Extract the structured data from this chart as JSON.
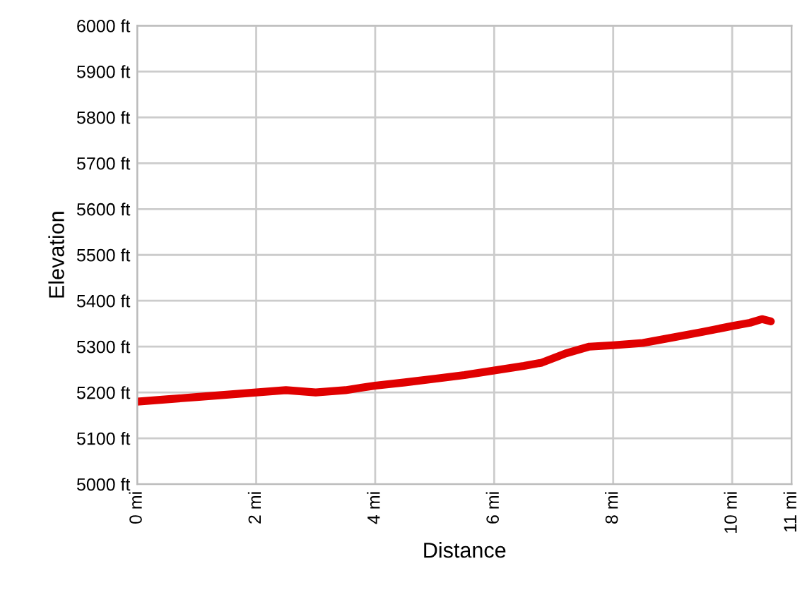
{
  "chart_data": {
    "type": "line",
    "xlabel": "Distance",
    "ylabel": "Elevation",
    "x": [
      0,
      0.5,
      1,
      1.5,
      2,
      2.5,
      3,
      3.5,
      4,
      4.5,
      5,
      5.5,
      6,
      6.5,
      6.8,
      7.2,
      7.6,
      8,
      8.5,
      9,
      9.5,
      10,
      10.3,
      10.5,
      10.65
    ],
    "series": [
      {
        "color": "#e00000",
        "values": [
          5180,
          5185,
          5190,
          5195,
          5200,
          5205,
          5200,
          5205,
          5215,
          5222,
          5230,
          5238,
          5248,
          5258,
          5265,
          5285,
          5300,
          5303,
          5308,
          5320,
          5332,
          5345,
          5352,
          5360,
          5355
        ]
      }
    ],
    "xlim": [
      0,
      11
    ],
    "xticks": [
      {
        "value": 0,
        "label": "0 mi"
      },
      {
        "value": 2,
        "label": "2 mi"
      },
      {
        "value": 4,
        "label": "4 mi"
      },
      {
        "value": 6,
        "label": "6 mi"
      },
      {
        "value": 8,
        "label": "8 mi"
      },
      {
        "value": 10,
        "label": "10 mi"
      },
      {
        "value": 11,
        "label": "11 mi"
      }
    ],
    "ylim": [
      5000,
      6000
    ],
    "yticks": [
      {
        "value": 5000,
        "label": "5000 ft"
      },
      {
        "value": 5100,
        "label": "5100 ft"
      },
      {
        "value": 5200,
        "label": "5200 ft"
      },
      {
        "value": 5300,
        "label": "5300 ft"
      },
      {
        "value": 5400,
        "label": "5400 ft"
      },
      {
        "value": 5500,
        "label": "5500 ft"
      },
      {
        "value": 5600,
        "label": "5600 ft"
      },
      {
        "value": 5700,
        "label": "5700 ft"
      },
      {
        "value": 5800,
        "label": "5800 ft"
      },
      {
        "value": 5900,
        "label": "5900 ft"
      },
      {
        "value": 6000,
        "label": "6000 ft"
      }
    ],
    "grid": true,
    "legend": false,
    "marker": "none",
    "line_style": "solid"
  }
}
